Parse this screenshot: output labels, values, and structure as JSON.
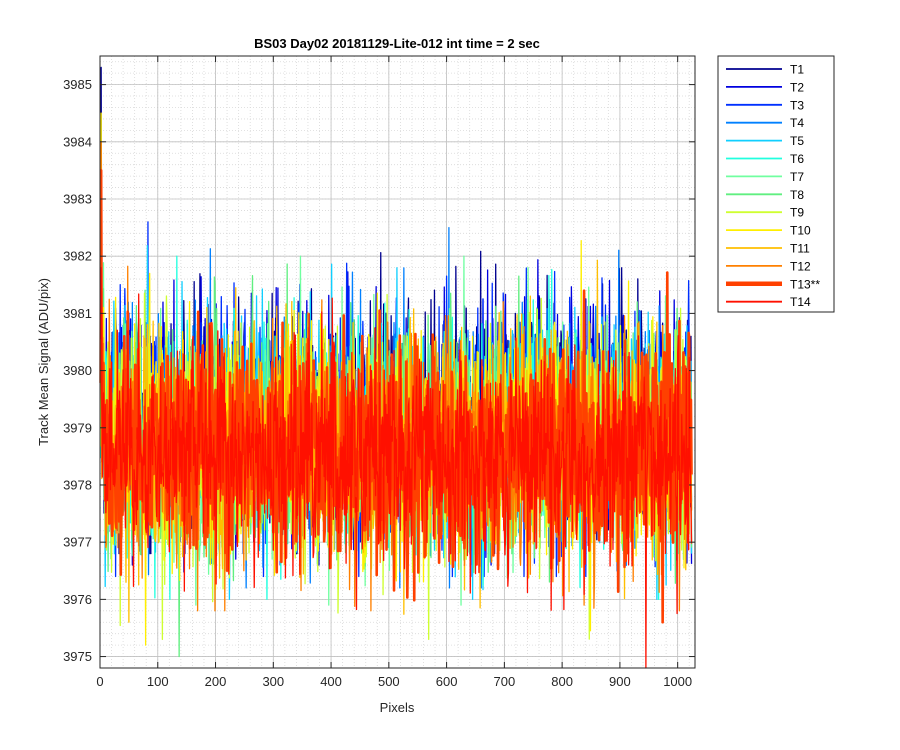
{
  "chart_data": {
    "type": "line",
    "title": "BS03 Day02 20181129-Lite-012 int time = 2 sec",
    "xlabel": "Pixels",
    "ylabel": "Track Mean Signal (ADU/pix)",
    "xlim": [
      0,
      1030
    ],
    "ylim": [
      3974.8,
      3985.5
    ],
    "xticks": [
      0,
      100,
      200,
      300,
      400,
      500,
      600,
      700,
      800,
      900,
      1000
    ],
    "yticks": [
      3975,
      3976,
      3977,
      3978,
      3979,
      3980,
      3981,
      3982,
      3983,
      3984,
      3985
    ],
    "grid": "major and minor (dotted)",
    "legend_position": "outside-right",
    "x_range": [
      1,
      1024
    ],
    "series": [
      {
        "name": "T1",
        "color": "#00008f",
        "center": 3979.2,
        "spread": 1.55,
        "min": 3976.8,
        "max": 3985.3,
        "highlight": false
      },
      {
        "name": "T2",
        "color": "#0000df",
        "center": 3979.1,
        "spread": 1.55,
        "min": 3976.6,
        "max": 3983.1,
        "highlight": false
      },
      {
        "name": "T3",
        "color": "#0030ff",
        "center": 3979.0,
        "spread": 1.55,
        "min": 3976.4,
        "max": 3982.6,
        "highlight": false
      },
      {
        "name": "T4",
        "color": "#0080ff",
        "center": 3978.9,
        "spread": 1.55,
        "min": 3976.2,
        "max": 3982.5,
        "highlight": false
      },
      {
        "name": "T5",
        "color": "#10cfff",
        "center": 3978.9,
        "spread": 1.55,
        "min": 3976.0,
        "max": 3982.3,
        "highlight": false
      },
      {
        "name": "T6",
        "color": "#20ffdf",
        "center": 3978.8,
        "spread": 1.55,
        "min": 3976.0,
        "max": 3982.0,
        "highlight": false
      },
      {
        "name": "T7",
        "color": "#70ffa0",
        "center": 3978.8,
        "spread": 1.55,
        "min": 3975.9,
        "max": 3982.0,
        "highlight": false
      },
      {
        "name": "T8",
        "color": "#60ef80",
        "center": 3978.8,
        "spread": 1.55,
        "min": 3975.0,
        "max": 3982.3,
        "highlight": false
      },
      {
        "name": "T9",
        "color": "#cfff30",
        "center": 3978.7,
        "spread": 1.55,
        "min": 3975.3,
        "max": 3982.4,
        "highlight": false
      },
      {
        "name": "T10",
        "color": "#ffef00",
        "center": 3978.7,
        "spread": 1.55,
        "min": 3975.2,
        "max": 3984.5,
        "highlight": false
      },
      {
        "name": "T11",
        "color": "#ffbf00",
        "center": 3978.7,
        "spread": 1.55,
        "min": 3975.6,
        "max": 3982.0,
        "highlight": false
      },
      {
        "name": "T12",
        "color": "#ff8000",
        "center": 3978.6,
        "spread": 1.55,
        "min": 3975.8,
        "max": 3984.0,
        "highlight": false
      },
      {
        "name": "T13**",
        "color": "#ff4000",
        "center": 3978.6,
        "spread": 1.5,
        "min": 3975.6,
        "max": 3983.5,
        "highlight": true
      },
      {
        "name": "T14",
        "color": "#ff1000",
        "center": 3978.5,
        "spread": 1.5,
        "min": 3974.8,
        "max": 3981.8,
        "highlight": false
      }
    ]
  }
}
